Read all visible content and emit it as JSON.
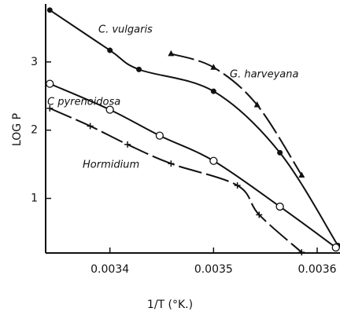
{
  "chart_data": {
    "type": "scatter",
    "xlabel": "1/T (°K.)",
    "ylabel": "LOG P",
    "xlim": [
      0.003338,
      0.003622
    ],
    "ylim": [
      0.2,
      3.85
    ],
    "xticks": [
      0.0034,
      0.0035,
      0.0036
    ],
    "yticks": [
      1,
      2,
      3
    ],
    "series": [
      {
        "name": "C. vulgaris",
        "color": "#111111",
        "marker": "filled-circle",
        "dashed": false,
        "x": [
          0.003342,
          0.0034,
          0.003428,
          0.0035,
          0.003564,
          0.00362
        ],
        "values": [
          3.76,
          3.17,
          2.89,
          2.57,
          1.67,
          0.31
        ]
      },
      {
        "name": "G. harveyana",
        "color": "#111111",
        "marker": "triangle",
        "dashed": true,
        "x": [
          0.003459,
          0.0035,
          0.003542,
          0.003585
        ],
        "values": [
          3.12,
          2.92,
          2.37,
          1.34
        ]
      },
      {
        "name": "C pyrenoidosa",
        "color": "#111111",
        "marker": "open-circle",
        "dashed": false,
        "x": [
          0.003342,
          0.0034,
          0.003448,
          0.0035,
          0.003564,
          0.003618
        ],
        "values": [
          2.68,
          2.3,
          1.92,
          1.55,
          0.88,
          0.28
        ]
      },
      {
        "name": "Hormidium",
        "color": "#111111",
        "marker": "plus",
        "dashed": true,
        "x": [
          0.003342,
          0.003381,
          0.003417,
          0.003459,
          0.003523,
          0.003544,
          0.003585
        ],
        "values": [
          2.32,
          2.06,
          1.79,
          1.51,
          1.19,
          0.76,
          0.21
        ]
      }
    ]
  }
}
